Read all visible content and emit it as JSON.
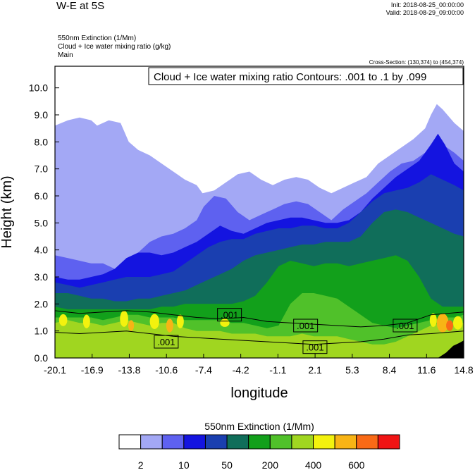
{
  "header": {
    "title": "W-E at 5S",
    "init": "Init: 2018-08-25_00:00:00",
    "valid": "Valid: 2018-08-29_09:00:00",
    "var1": "550nm Extinction   (1/Mm)",
    "var2": "Cloud + Ice water mixing ratio   (g/kg)",
    "var3": "Main",
    "cross_section": "Cross-Section: (130,374) to (454,374)"
  },
  "chart_data": {
    "type": "heatmap",
    "title": "Cloud + Ice water mixing ratio Contours: .001 to .1 by .099",
    "xlabel": "longitude",
    "ylabel": "Height (km)",
    "x_ticks": [
      "-20.1",
      "-16.9",
      "-13.8",
      "-10.6",
      "-7.4",
      "-4.2",
      "-1.1",
      "2.1",
      "5.3",
      "8.4",
      "11.6",
      "14.8"
    ],
    "y_ticks": [
      "0.0",
      "1.0",
      "2.0",
      "3.0",
      "4.0",
      "5.0",
      "6.0",
      "7.0",
      "8.0",
      "9.0",
      "10.0"
    ],
    "xlim": [
      -20.1,
      14.8
    ],
    "ylim": [
      0,
      10.8
    ],
    "contour_labels": [
      {
        "text": ".001",
        "x": -5.2,
        "y": 1.6
      },
      {
        "text": ".001",
        "x": 1.3,
        "y": 1.2
      },
      {
        "text": ".001",
        "x": -10.6,
        "y": 0.6
      },
      {
        "text": ".001",
        "x": 2.1,
        "y": 0.4
      },
      {
        "text": ".001",
        "x": 9.8,
        "y": 1.2
      }
    ],
    "colorbar": {
      "title": "550nm Extinction  (1/Mm)",
      "colors": [
        "#ffffff",
        "#a3a8f5",
        "#5e61f0",
        "#1414e0",
        "#1a3fb0",
        "#106e5a",
        "#12a01b",
        "#50c12a",
        "#a0d620",
        "#f3f20e",
        "#f8b415",
        "#f96a16",
        "#f01414"
      ],
      "labels": [
        "2",
        "10",
        "50",
        "200",
        "400",
        "600"
      ]
    },
    "layers": [
      {
        "color": "#a3a8f5",
        "top": [
          [
            -20.1,
            8.6
          ],
          [
            -19,
            8.8
          ],
          [
            -18,
            8.9
          ],
          [
            -17,
            8.8
          ],
          [
            -16.5,
            8.6
          ],
          [
            -15.5,
            8.8
          ],
          [
            -14.5,
            8.7
          ],
          [
            -13.8,
            8.0
          ],
          [
            -13,
            7.7
          ],
          [
            -12,
            7.5
          ],
          [
            -11,
            7.2
          ],
          [
            -10,
            6.9
          ],
          [
            -9,
            6.6
          ],
          [
            -8,
            6.4
          ],
          [
            -7.5,
            6.1
          ],
          [
            -6.5,
            6.2
          ],
          [
            -5.5,
            6.5
          ],
          [
            -4.5,
            6.8
          ],
          [
            -3.5,
            6.9
          ],
          [
            -2.5,
            6.6
          ],
          [
            -1.5,
            6.4
          ],
          [
            -0.5,
            6.6
          ],
          [
            0.5,
            6.7
          ],
          [
            1.5,
            6.6
          ],
          [
            2.5,
            6.3
          ],
          [
            3.5,
            6.1
          ],
          [
            4.5,
            6.3
          ],
          [
            5.5,
            6.5
          ],
          [
            6.5,
            6.7
          ],
          [
            7.5,
            7.2
          ],
          [
            8.5,
            7.5
          ],
          [
            9.5,
            7.8
          ],
          [
            10.5,
            8.1
          ],
          [
            11.5,
            8.5
          ],
          [
            12,
            9.0
          ],
          [
            12.5,
            9.4
          ],
          [
            13,
            9.2
          ],
          [
            14,
            8.7
          ],
          [
            14.8,
            8.4
          ]
        ]
      },
      {
        "color": "#5e61f0",
        "top": [
          [
            -20.1,
            3.8
          ],
          [
            -19,
            3.7
          ],
          [
            -18,
            3.6
          ],
          [
            -17,
            3.5
          ],
          [
            -16,
            3.5
          ],
          [
            -15,
            3.3
          ],
          [
            -14,
            3.5
          ],
          [
            -13,
            3.9
          ],
          [
            -12,
            4.3
          ],
          [
            -11,
            4.5
          ],
          [
            -10,
            4.6
          ],
          [
            -9,
            4.8
          ],
          [
            -8,
            5.1
          ],
          [
            -7.4,
            5.6
          ],
          [
            -6.5,
            6.0
          ],
          [
            -5.5,
            5.9
          ],
          [
            -4.5,
            5.4
          ],
          [
            -3.5,
            5.1
          ],
          [
            -2.5,
            5.3
          ],
          [
            -1.5,
            5.5
          ],
          [
            -0.5,
            5.7
          ],
          [
            0.5,
            5.8
          ],
          [
            1.5,
            5.7
          ],
          [
            2.5,
            5.4
          ],
          [
            3.5,
            5.1
          ],
          [
            4.5,
            5.5
          ],
          [
            5.5,
            5.8
          ],
          [
            6.5,
            6.1
          ],
          [
            7.5,
            6.5
          ],
          [
            8.5,
            6.9
          ],
          [
            9.5,
            7.2
          ],
          [
            10.5,
            7.3
          ],
          [
            11.5,
            7.6
          ],
          [
            12.3,
            8.1
          ],
          [
            13,
            7.9
          ],
          [
            14,
            7.6
          ],
          [
            14.8,
            7.3
          ]
        ]
      },
      {
        "color": "#1414e0",
        "top": [
          [
            -20.1,
            3.0
          ],
          [
            -19,
            2.9
          ],
          [
            -18,
            2.9
          ],
          [
            -17,
            3.0
          ],
          [
            -16,
            3.1
          ],
          [
            -15,
            3.3
          ],
          [
            -14,
            3.7
          ],
          [
            -13,
            3.9
          ],
          [
            -12,
            3.9
          ],
          [
            -11,
            3.8
          ],
          [
            -10,
            3.9
          ],
          [
            -9,
            4.1
          ],
          [
            -8,
            4.3
          ],
          [
            -7,
            4.6
          ],
          [
            -6,
            4.9
          ],
          [
            -5,
            4.7
          ],
          [
            -4,
            4.6
          ],
          [
            -3,
            4.8
          ],
          [
            -2,
            5.0
          ],
          [
            -1,
            5.1
          ],
          [
            0,
            5.2
          ],
          [
            1,
            5.2
          ],
          [
            2,
            5.1
          ],
          [
            3,
            5.0
          ],
          [
            4,
            5.0
          ],
          [
            5,
            5.1
          ],
          [
            6,
            5.4
          ],
          [
            7,
            5.9
          ],
          [
            8,
            6.3
          ],
          [
            9,
            6.7
          ],
          [
            10,
            7.0
          ],
          [
            11,
            7.3
          ],
          [
            12,
            7.9
          ],
          [
            12.6,
            8.3
          ],
          [
            13.2,
            7.9
          ],
          [
            14,
            7.2
          ],
          [
            14.8,
            6.9
          ]
        ]
      },
      {
        "color": "#1a3fb0",
        "top": [
          [
            -20.1,
            2.8
          ],
          [
            -19,
            2.7
          ],
          [
            -18,
            2.6
          ],
          [
            -17,
            2.7
          ],
          [
            -16,
            2.8
          ],
          [
            -15,
            2.9
          ],
          [
            -14,
            3.0
          ],
          [
            -13,
            3.0
          ],
          [
            -12,
            3.0
          ],
          [
            -11,
            3.1
          ],
          [
            -10,
            3.2
          ],
          [
            -9,
            3.5
          ],
          [
            -8,
            3.8
          ],
          [
            -7,
            4.1
          ],
          [
            -6,
            4.3
          ],
          [
            -5,
            4.4
          ],
          [
            -4,
            4.4
          ],
          [
            -3,
            4.6
          ],
          [
            -2,
            4.7
          ],
          [
            -1,
            4.8
          ],
          [
            0,
            4.8
          ],
          [
            1,
            4.9
          ],
          [
            2,
            4.9
          ],
          [
            3,
            4.8
          ],
          [
            4,
            4.8
          ],
          [
            5,
            5.0
          ],
          [
            6,
            5.4
          ],
          [
            7,
            5.8
          ],
          [
            8,
            6.1
          ],
          [
            9,
            6.2
          ],
          [
            10,
            6.3
          ],
          [
            11,
            6.5
          ],
          [
            12,
            6.8
          ],
          [
            13,
            6.6
          ],
          [
            14,
            6.4
          ],
          [
            14.8,
            6.2
          ]
        ]
      },
      {
        "color": "#106e5a",
        "top": [
          [
            -20.1,
            2.4
          ],
          [
            -19,
            2.4
          ],
          [
            -18,
            2.3
          ],
          [
            -17,
            2.2
          ],
          [
            -16,
            2.2
          ],
          [
            -15,
            2.1
          ],
          [
            -14,
            2.1
          ],
          [
            -13,
            2.2
          ],
          [
            -12,
            2.2
          ],
          [
            -11,
            2.3
          ],
          [
            -10,
            2.4
          ],
          [
            -9,
            2.5
          ],
          [
            -8,
            2.7
          ],
          [
            -7,
            2.9
          ],
          [
            -6,
            3.1
          ],
          [
            -5,
            3.3
          ],
          [
            -4,
            3.6
          ],
          [
            -3,
            3.8
          ],
          [
            -2,
            3.9
          ],
          [
            -1,
            4.0
          ],
          [
            0,
            4.1
          ],
          [
            1,
            4.2
          ],
          [
            2,
            4.2
          ],
          [
            3,
            4.3
          ],
          [
            4,
            4.3
          ],
          [
            5,
            4.3
          ],
          [
            6,
            4.5
          ],
          [
            7,
            5.0
          ],
          [
            8,
            5.4
          ],
          [
            9,
            5.5
          ],
          [
            10,
            5.4
          ],
          [
            11,
            5.2
          ],
          [
            12,
            5.0
          ],
          [
            13,
            4.8
          ],
          [
            14,
            4.6
          ],
          [
            14.8,
            4.5
          ]
        ]
      },
      {
        "color": "#12a01b",
        "top": [
          [
            -20.1,
            1.9
          ],
          [
            -19,
            1.8
          ],
          [
            -18,
            1.8
          ],
          [
            -17,
            1.8
          ],
          [
            -16,
            1.8
          ],
          [
            -15,
            1.8
          ],
          [
            -14,
            1.8
          ],
          [
            -13,
            1.8
          ],
          [
            -12,
            1.8
          ],
          [
            -11,
            1.9
          ],
          [
            -10,
            1.9
          ],
          [
            -9,
            2.0
          ],
          [
            -8,
            2.0
          ],
          [
            -7,
            2.0
          ],
          [
            -6,
            2.0
          ],
          [
            -5,
            2.0
          ],
          [
            -4,
            2.1
          ],
          [
            -3,
            2.3
          ],
          [
            -2,
            2.8
          ],
          [
            -1,
            3.4
          ],
          [
            0,
            3.6
          ],
          [
            1,
            3.5
          ],
          [
            2,
            3.4
          ],
          [
            3,
            3.5
          ],
          [
            4,
            3.5
          ],
          [
            5,
            3.4
          ],
          [
            6,
            3.5
          ],
          [
            7,
            3.6
          ],
          [
            8,
            3.7
          ],
          [
            9,
            3.8
          ],
          [
            10,
            3.6
          ],
          [
            11,
            3.0
          ],
          [
            12,
            2.2
          ],
          [
            13,
            1.9
          ],
          [
            14,
            1.9
          ],
          [
            14.8,
            1.9
          ]
        ]
      },
      {
        "color": "#50c12a",
        "top": [
          [
            -20.1,
            1.5
          ],
          [
            -19,
            1.5
          ],
          [
            -18,
            1.5
          ],
          [
            -17,
            1.5
          ],
          [
            -16,
            1.4
          ],
          [
            -15,
            1.5
          ],
          [
            -14,
            1.6
          ],
          [
            -13,
            1.6
          ],
          [
            -12,
            1.5
          ],
          [
            -11,
            1.5
          ],
          [
            -10,
            1.5
          ],
          [
            -9,
            1.4
          ],
          [
            -8,
            1.4
          ],
          [
            -7,
            1.4
          ],
          [
            -6,
            1.4
          ],
          [
            -5,
            1.3
          ],
          [
            -4,
            1.3
          ],
          [
            -3,
            1.2
          ],
          [
            -2,
            1.1
          ],
          [
            -1,
            1.2
          ],
          [
            0,
            2.0
          ],
          [
            1,
            2.4
          ],
          [
            2,
            2.4
          ],
          [
            3,
            2.3
          ],
          [
            4,
            2.2
          ],
          [
            5,
            1.9
          ],
          [
            6,
            1.6
          ],
          [
            7,
            1.3
          ],
          [
            8,
            1.2
          ],
          [
            9,
            1.1
          ],
          [
            10,
            1.2
          ],
          [
            11,
            1.3
          ],
          [
            12,
            1.4
          ],
          [
            13,
            1.5
          ],
          [
            14,
            1.5
          ],
          [
            14.8,
            1.6
          ]
        ]
      },
      {
        "color": "#a0d620",
        "top": [
          [
            -20.1,
            1.3
          ],
          [
            -19,
            1.4
          ],
          [
            -18,
            1.3
          ],
          [
            -17,
            1.3
          ],
          [
            -16,
            1.2
          ],
          [
            -15,
            1.3
          ],
          [
            -14,
            1.4
          ],
          [
            -13,
            1.3
          ],
          [
            -12,
            1.2
          ],
          [
            -11,
            1.3
          ],
          [
            -10,
            1.3
          ],
          [
            -9,
            1.1
          ],
          [
            -8,
            1.0
          ],
          [
            -7,
            1.0
          ],
          [
            -6,
            1.0
          ],
          [
            -5,
            0.9
          ],
          [
            -4,
            0.9
          ],
          [
            -3,
            0.9
          ],
          [
            -2,
            0.8
          ],
          [
            -1,
            0.8
          ],
          [
            0,
            0.8
          ],
          [
            1,
            0.9
          ],
          [
            2,
            0.8
          ],
          [
            3,
            0.8
          ],
          [
            4,
            0.8
          ],
          [
            5,
            0.7
          ],
          [
            6,
            0.6
          ],
          [
            7,
            0.5
          ],
          [
            8,
            0.5
          ],
          [
            9,
            0.6
          ],
          [
            10,
            0.8
          ],
          [
            11,
            1.0
          ],
          [
            12,
            1.2
          ],
          [
            13,
            1.3
          ],
          [
            14,
            1.3
          ],
          [
            14.8,
            1.3
          ]
        ]
      }
    ]
  }
}
